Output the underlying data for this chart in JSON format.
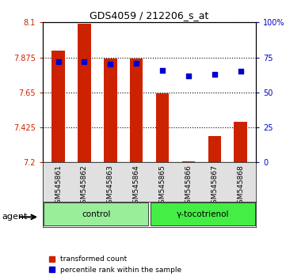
{
  "title": "GDS4059 / 212206_s_at",
  "samples": [
    "GSM545861",
    "GSM545862",
    "GSM545863",
    "GSM545864",
    "GSM545865",
    "GSM545866",
    "GSM545867",
    "GSM545868"
  ],
  "transformed_counts": [
    7.92,
    8.09,
    7.87,
    7.87,
    7.645,
    7.205,
    7.37,
    7.46
  ],
  "percentile_ranks": [
    72,
    72,
    70,
    71,
    66,
    62,
    63,
    65
  ],
  "ylim_left": [
    7.2,
    8.1
  ],
  "yticks_left": [
    7.2,
    7.425,
    7.65,
    7.875,
    8.1
  ],
  "ytick_labels_left": [
    "7.2",
    "7.425",
    "7.65",
    "7.875",
    "8.1"
  ],
  "ylim_right": [
    0,
    100
  ],
  "yticks_right": [
    0,
    25,
    50,
    75,
    100
  ],
  "ytick_labels_right": [
    "0",
    "25",
    "50",
    "75",
    "100%"
  ],
  "bar_color": "#cc2200",
  "dot_color": "#0000cc",
  "bar_bottom": 7.2,
  "groups": [
    {
      "label": "control",
      "indices": [
        0,
        1,
        2,
        3
      ],
      "color": "#99ee99"
    },
    {
      "label": "γ-tocotrienol",
      "indices": [
        4,
        5,
        6,
        7
      ],
      "color": "#44ee44"
    }
  ],
  "agent_label": "agent",
  "legend_items": [
    {
      "label": "transformed count",
      "color": "#cc2200"
    },
    {
      "label": "percentile rank within the sample",
      "color": "#0000cc"
    }
  ],
  "tick_label_color_left": "#cc2200",
  "tick_label_color_right": "#0000cc",
  "bg_color": "#e0e0e0",
  "plot_bg": "#ffffff"
}
